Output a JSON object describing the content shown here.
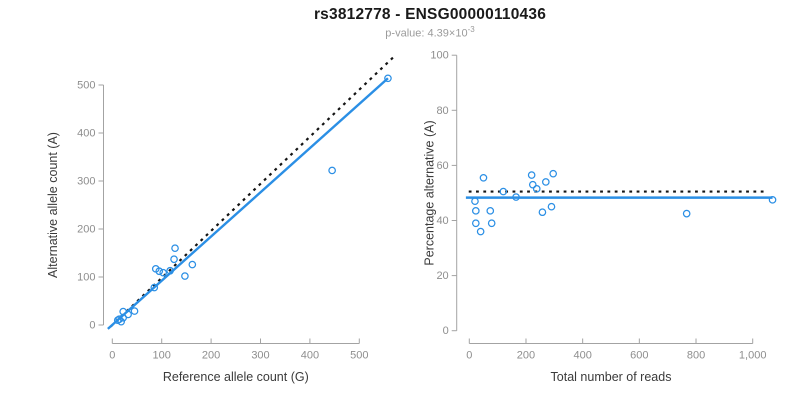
{
  "header": {
    "title": "rs3812778 - ENSG00000110436",
    "subtitle": {
      "text": "p-value: 4.39×10",
      "exponent": "-3"
    }
  },
  "colors": {
    "accent": "#2b8fe5",
    "dotted": "#141414",
    "axis_line": "#a3a3a3",
    "tick_label": "#8e8e8e",
    "axis_label": "#3b3b3b"
  },
  "chart_data": [
    {
      "type": "scatter",
      "panel": "left",
      "xlabel": "Reference allele count (G)",
      "ylabel": "Alternative allele count (A)",
      "xlim": [
        -15,
        575
      ],
      "ylim": [
        -15,
        575
      ],
      "grid": false,
      "xticks": [
        0,
        100,
        200,
        300,
        400,
        500
      ],
      "xtick_labels": [
        "0",
        "100",
        "200",
        "300",
        "400",
        "500"
      ],
      "yticks": [
        0,
        100,
        200,
        300,
        400,
        500
      ],
      "ytick_labels": [
        "0",
        "100",
        "200",
        "300",
        "400",
        "500"
      ],
      "points": [
        [
          11,
          10
        ],
        [
          14,
          12
        ],
        [
          18,
          7
        ],
        [
          22,
          15
        ],
        [
          22,
          28
        ],
        [
          32,
          22
        ],
        [
          45,
          29
        ],
        [
          85,
          78
        ],
        [
          88,
          117
        ],
        [
          95,
          112
        ],
        [
          103,
          109
        ],
        [
          117,
          113
        ],
        [
          125,
          137
        ],
        [
          127,
          160
        ],
        [
          147,
          102
        ],
        [
          162,
          126
        ],
        [
          445,
          322
        ],
        [
          558,
          514
        ]
      ],
      "lines": [
        {
          "name": "identity-line",
          "style": "dotted",
          "x1": -3,
          "y1": -3,
          "x2": 568,
          "y2": 557
        },
        {
          "name": "fit-line",
          "style": "solid",
          "x1": -9,
          "y1": -8,
          "x2": 558,
          "y2": 514
        }
      ]
    },
    {
      "type": "scatter",
      "panel": "right",
      "xlabel": "Total number of reads",
      "ylabel": "Percentage alternative (A)",
      "xlim": [
        -50,
        1120
      ],
      "ylim": [
        0,
        100
      ],
      "grid": false,
      "xticks": [
        0,
        200,
        400,
        600,
        800,
        1000
      ],
      "xtick_labels": [
        "0",
        "200",
        "400",
        "600",
        "800",
        "1,000"
      ],
      "yticks": [
        0,
        20,
        40,
        60,
        80,
        100
      ],
      "ytick_labels": [
        "0",
        "20",
        "40",
        "60",
        "80",
        "100"
      ],
      "points": [
        [
          20,
          47
        ],
        [
          23,
          43.5
        ],
        [
          23,
          39
        ],
        [
          40,
          36
        ],
        [
          50,
          55.5
        ],
        [
          74,
          43.5
        ],
        [
          79,
          39
        ],
        [
          120,
          50.5
        ],
        [
          165,
          48.5
        ],
        [
          220,
          56.5
        ],
        [
          224,
          53
        ],
        [
          238,
          51.5
        ],
        [
          258,
          43
        ],
        [
          270,
          54
        ],
        [
          290,
          45
        ],
        [
          296,
          57
        ],
        [
          767,
          42.5
        ],
        [
          1070,
          47.5
        ]
      ],
      "lines": [
        {
          "name": "null-line",
          "style": "dotted",
          "x1": -2,
          "y1": 50.5,
          "x2": 1048,
          "y2": 50.5
        },
        {
          "name": "fit-line",
          "style": "solid",
          "x1": -12,
          "y1": 48.3,
          "x2": 1070,
          "y2": 48.3
        }
      ]
    }
  ]
}
